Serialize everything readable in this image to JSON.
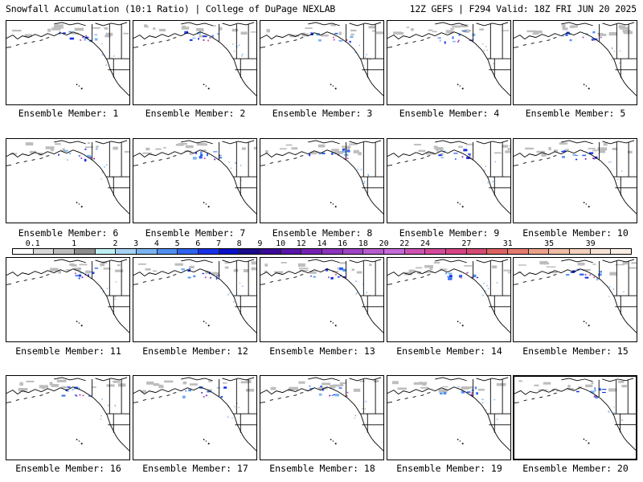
{
  "header": {
    "left": "Snowfall Accumulation (10:1 Ratio) | College of DuPage NEXLAB",
    "right": "12Z GEFS | F294 Valid: 18Z FRI JUN 20 2025"
  },
  "panels": [
    {
      "label": "Ensemble Member: 1"
    },
    {
      "label": "Ensemble Member: 2"
    },
    {
      "label": "Ensemble Member: 3"
    },
    {
      "label": "Ensemble Member: 4"
    },
    {
      "label": "Ensemble Member: 5"
    },
    {
      "label": "Ensemble Member: 6"
    },
    {
      "label": "Ensemble Member: 7"
    },
    {
      "label": "Ensemble Member: 8"
    },
    {
      "label": "Ensemble Member: 9"
    },
    {
      "label": "Ensemble Member: 10"
    },
    {
      "label": "Ensemble Member: 11"
    },
    {
      "label": "Ensemble Member: 12"
    },
    {
      "label": "Ensemble Member: 13"
    },
    {
      "label": "Ensemble Member: 14"
    },
    {
      "label": "Ensemble Member: 15"
    },
    {
      "label": "Ensemble Member: 16"
    },
    {
      "label": "Ensemble Member: 17"
    },
    {
      "label": "Ensemble Member: 18"
    },
    {
      "label": "Ensemble Member: 19"
    },
    {
      "label": "Ensemble Member: 20"
    }
  ],
  "legend": {
    "labels": [
      "0.1",
      "1",
      "2",
      "3",
      "4",
      "5",
      "6",
      "7",
      "8",
      "9",
      "10",
      "12",
      "14",
      "16",
      "18",
      "20",
      "22",
      "24",
      "27",
      "31",
      "35",
      "39"
    ],
    "colors": [
      "#ffffff",
      "#d9d9d9",
      "#bdbdbd",
      "#8c8c8c",
      "#bfeff4",
      "#a6d2f6",
      "#79b4f0",
      "#4f8ef0",
      "#2d63f0",
      "#1830e8",
      "#0a10c8",
      "#1a0a8c",
      "#3a0a9a",
      "#5814a8",
      "#7622b4",
      "#8c34be",
      "#a044c6",
      "#b85cd0",
      "#c66ad8",
      "#cf52b4",
      "#d44a9c",
      "#d84486",
      "#d64a74",
      "#dc6262",
      "#e47a6e",
      "#eaa088",
      "#f0bca4",
      "#f4d0bc",
      "#f8e4d6",
      "#fbf0e8"
    ]
  }
}
